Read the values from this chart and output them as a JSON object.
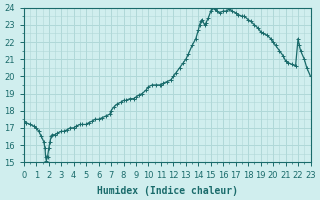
{
  "xlabel": "Humidex (Indice chaleur)",
  "ylabel": "",
  "xlim": [
    0,
    23
  ],
  "ylim": [
    15,
    24
  ],
  "yticks": [
    15,
    16,
    17,
    18,
    19,
    20,
    21,
    22,
    23,
    24
  ],
  "xticks": [
    0,
    1,
    2,
    3,
    4,
    5,
    6,
    7,
    8,
    9,
    10,
    11,
    12,
    13,
    14,
    15,
    16,
    17,
    18,
    19,
    20,
    21,
    22,
    23
  ],
  "bg_color": "#d0eeee",
  "grid_color": "#b0d8d8",
  "line_color": "#1a6b6b",
  "marker_color": "#1a6b6b",
  "x": [
    0,
    0.2,
    0.5,
    0.8,
    1.0,
    1.2,
    1.4,
    1.6,
    1.7,
    1.75,
    1.8,
    1.9,
    2.0,
    2.1,
    2.2,
    2.3,
    2.5,
    2.7,
    3.0,
    3.2,
    3.5,
    3.7,
    4.0,
    4.2,
    4.5,
    4.7,
    5.0,
    5.2,
    5.5,
    5.7,
    6.0,
    6.3,
    6.6,
    6.9,
    7.0,
    7.2,
    7.5,
    7.8,
    8.0,
    8.2,
    8.5,
    8.8,
    9.0,
    9.2,
    9.5,
    9.8,
    10.0,
    10.3,
    10.6,
    10.9,
    11.0,
    11.2,
    11.5,
    11.8,
    12.0,
    12.2,
    12.5,
    12.8,
    13.0,
    13.2,
    13.5,
    13.8,
    14.0,
    14.1,
    14.2,
    14.3,
    14.5,
    14.6,
    14.8,
    15.0,
    15.1,
    15.2,
    15.3,
    15.5,
    15.7,
    16.0,
    16.2,
    16.5,
    16.7,
    17.0,
    17.2,
    17.5,
    17.7,
    18.0,
    18.2,
    18.5,
    18.8,
    19.0,
    19.2,
    19.5,
    19.8,
    20.0,
    20.2,
    20.5,
    20.8,
    21.0,
    21.2,
    21.5,
    21.8,
    22.0,
    22.1,
    22.2,
    22.5,
    22.7,
    23.0
  ],
  "y": [
    17.4,
    17.3,
    17.2,
    17.1,
    17.0,
    16.8,
    16.5,
    16.2,
    15.8,
    15.3,
    15.1,
    15.3,
    15.8,
    16.2,
    16.5,
    16.6,
    16.6,
    16.7,
    16.8,
    16.8,
    16.9,
    17.0,
    17.0,
    17.1,
    17.2,
    17.2,
    17.2,
    17.3,
    17.4,
    17.5,
    17.5,
    17.6,
    17.7,
    17.8,
    18.0,
    18.2,
    18.4,
    18.5,
    18.6,
    18.6,
    18.7,
    18.7,
    18.8,
    18.9,
    19.0,
    19.2,
    19.4,
    19.5,
    19.5,
    19.5,
    19.5,
    19.6,
    19.7,
    19.8,
    20.0,
    20.2,
    20.5,
    20.8,
    21.0,
    21.3,
    21.8,
    22.2,
    22.7,
    23.0,
    23.2,
    23.3,
    23.0,
    23.1,
    23.4,
    23.8,
    24.0,
    24.1,
    23.9,
    23.8,
    23.7,
    23.8,
    23.8,
    23.9,
    23.8,
    23.7,
    23.6,
    23.5,
    23.5,
    23.3,
    23.2,
    23.0,
    22.8,
    22.6,
    22.5,
    22.4,
    22.2,
    22.0,
    21.8,
    21.5,
    21.2,
    20.9,
    20.8,
    20.7,
    20.6,
    22.2,
    21.8,
    21.5,
    21.0,
    20.5,
    20.0
  ]
}
